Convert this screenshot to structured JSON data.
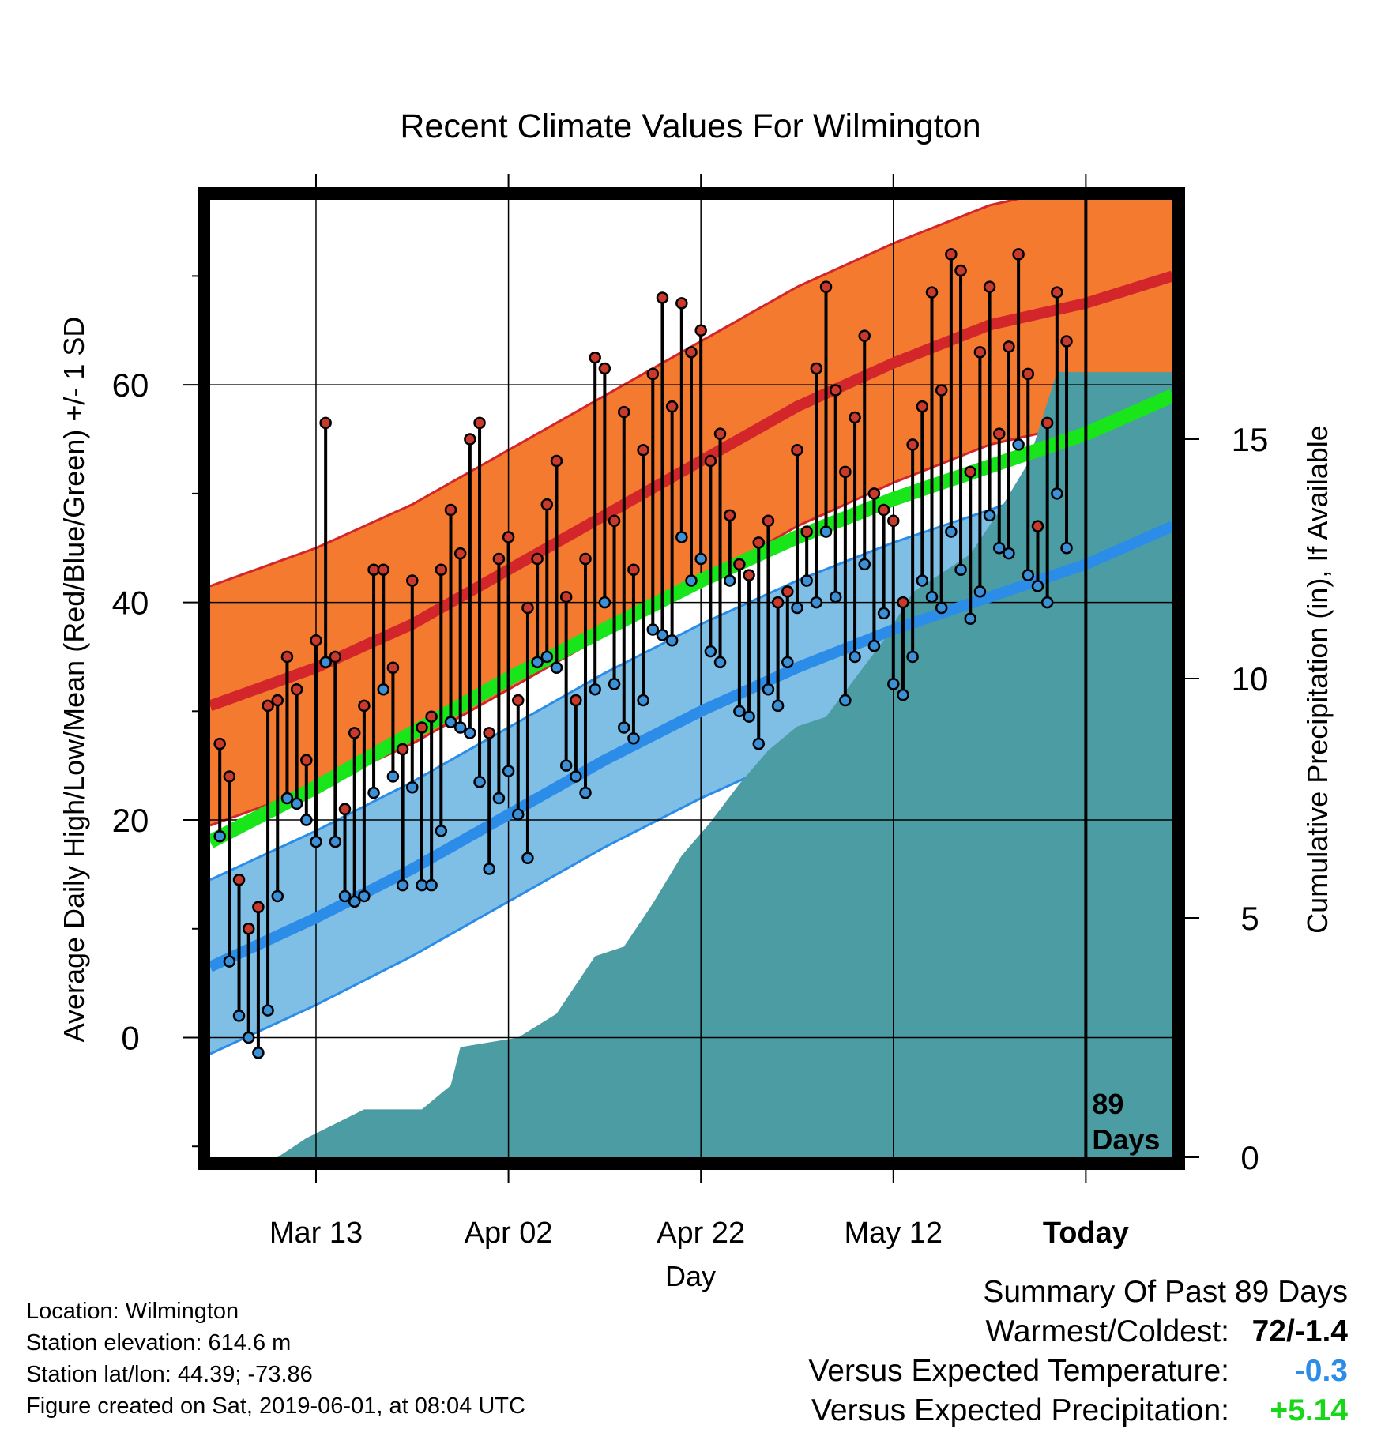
{
  "chart_data": {
    "type": "line",
    "title": "Recent Climate Values For Wilmington",
    "xlabel": "Day",
    "ylabel": "Average Daily High/Low/Mean (Red/Blue/Green) +/- 1 SD",
    "y2label": "Cumulative Precipitation (in), If Available",
    "x_tick_labels": [
      "Mar 13",
      "Apr 02",
      "Apr 22",
      "May 12",
      "Today"
    ],
    "x_tick_days": [
      10,
      30,
      50,
      70,
      90
    ],
    "xlim": [
      -1,
      99
    ],
    "ylim": [
      -11,
      77
    ],
    "y_ticks": [
      0,
      20,
      40,
      60
    ],
    "y2lim": [
      0,
      20
    ],
    "y2_ticks": [
      0,
      5,
      10,
      15
    ],
    "today_marker": {
      "day": 90,
      "label_line1": "89",
      "label_line2": "Days"
    },
    "grid": true,
    "normals": {
      "days": [
        -1,
        10,
        20,
        30,
        40,
        50,
        60,
        70,
        80,
        90,
        99
      ],
      "high_mean": [
        30.5,
        34,
        38,
        43,
        48,
        53,
        58,
        62,
        65.5,
        67.5,
        70
      ],
      "high_sd": 11,
      "low_mean": [
        6.5,
        11,
        15.5,
        20.5,
        25.5,
        30,
        34,
        37.5,
        40.5,
        43.5,
        47
      ],
      "low_sd": 8,
      "mean": [
        18,
        23,
        28,
        33,
        37.5,
        42,
        46,
        49.5,
        52.5,
        55.5,
        59
      ]
    },
    "daily_high": [
      27,
      24,
      14.5,
      10,
      12,
      30.5,
      31,
      35,
      32,
      25.5,
      36.5,
      56.5,
      35,
      21,
      28,
      30.5,
      43,
      43,
      34,
      26.5,
      42,
      28.5,
      29.5,
      43,
      48.5,
      44.5,
      55,
      56.5,
      28,
      44,
      46,
      31,
      39.5,
      44,
      49,
      53,
      40.5,
      31,
      44,
      62.5,
      61.5,
      47.5,
      57.5,
      43,
      54,
      61,
      68,
      58,
      67.5,
      63,
      65,
      53,
      55.5,
      48,
      43.5,
      42.5,
      45.5,
      47.5,
      40,
      41,
      54,
      46.5,
      61.5,
      69,
      59.5,
      52,
      57,
      64.5,
      50,
      48.5,
      47.5,
      40,
      54.5,
      58,
      68.5,
      59.5,
      72,
      70.5,
      52,
      63,
      69,
      55.5,
      63.5,
      72,
      61,
      47,
      56.5,
      68.5,
      64
    ],
    "daily_low": [
      18.5,
      7,
      2,
      0,
      -1.4,
      2.5,
      13,
      22,
      21.5,
      20,
      18,
      34.5,
      18,
      13,
      12.5,
      13,
      22.5,
      32,
      24,
      14,
      23,
      14,
      14,
      19,
      29,
      28.5,
      28,
      23.5,
      15.5,
      22,
      24.5,
      20.5,
      16.5,
      34.5,
      35,
      34,
      25,
      24,
      22.5,
      32,
      40,
      32.5,
      28.5,
      27.5,
      31,
      37.5,
      37,
      36.5,
      46,
      42,
      44,
      35.5,
      34.5,
      42,
      30,
      29.5,
      27,
      32,
      30.5,
      34.5,
      39.5,
      42,
      40,
      46.5,
      40.5,
      31,
      35,
      43.5,
      36,
      39,
      32.5,
      31.5,
      35,
      42,
      40.5,
      39.5,
      46.5,
      43,
      38.5,
      41,
      48,
      45,
      44.5,
      54.5,
      42.5,
      41.5,
      40,
      50,
      45
    ],
    "cumulative_precip_days": [
      -1,
      6,
      9,
      12,
      15,
      18,
      21,
      24,
      25,
      28,
      31,
      35,
      39,
      42,
      45,
      48,
      51,
      54,
      57,
      60,
      63,
      66,
      69,
      72,
      75,
      78,
      81,
      84,
      87,
      90,
      99
    ],
    "cumulative_precip": [
      0,
      0,
      0.4,
      0.7,
      1.0,
      1.0,
      1.0,
      1.5,
      2.3,
      2.4,
      2.5,
      3.0,
      4.2,
      4.4,
      5.3,
      6.3,
      7.0,
      7.8,
      8.5,
      9.0,
      9.2,
      10.0,
      10.8,
      11.8,
      12.2,
      12.6,
      13.5,
      14.5,
      16.4,
      16.4,
      16.4
    ]
  },
  "colors": {
    "high_band": "#f47a30",
    "high_band_edge": "#d3262b",
    "high_line": "#d3262b",
    "low_band": "#7fbfe6",
    "low_band_edge": "#2b8de8",
    "low_line": "#2b8de8",
    "mean_line": "#18e61a",
    "precip": "#4b9ca3",
    "high_point": "#c93a2c",
    "low_point": "#3b90d8"
  },
  "info": {
    "location": "Location: Wilmington",
    "elevation": "Station elevation: 614.6 m",
    "latlon": "Station lat/lon: 44.39; -73.86",
    "created": "Figure created on Sat, 2019-06-01, at 08:04 UTC"
  },
  "summary": {
    "heading": "Summary Of Past 89 Days",
    "warmest_coldest_label": "Warmest/Coldest:",
    "warmest_coldest_value": "72/-1.4",
    "temp_label": "Versus Expected Temperature:",
    "temp_value": "-0.3",
    "temp_color": "#2b8de8",
    "precip_label": "Versus Expected Precipitation:",
    "precip_value": "+5.14",
    "precip_color": "#18d618"
  }
}
